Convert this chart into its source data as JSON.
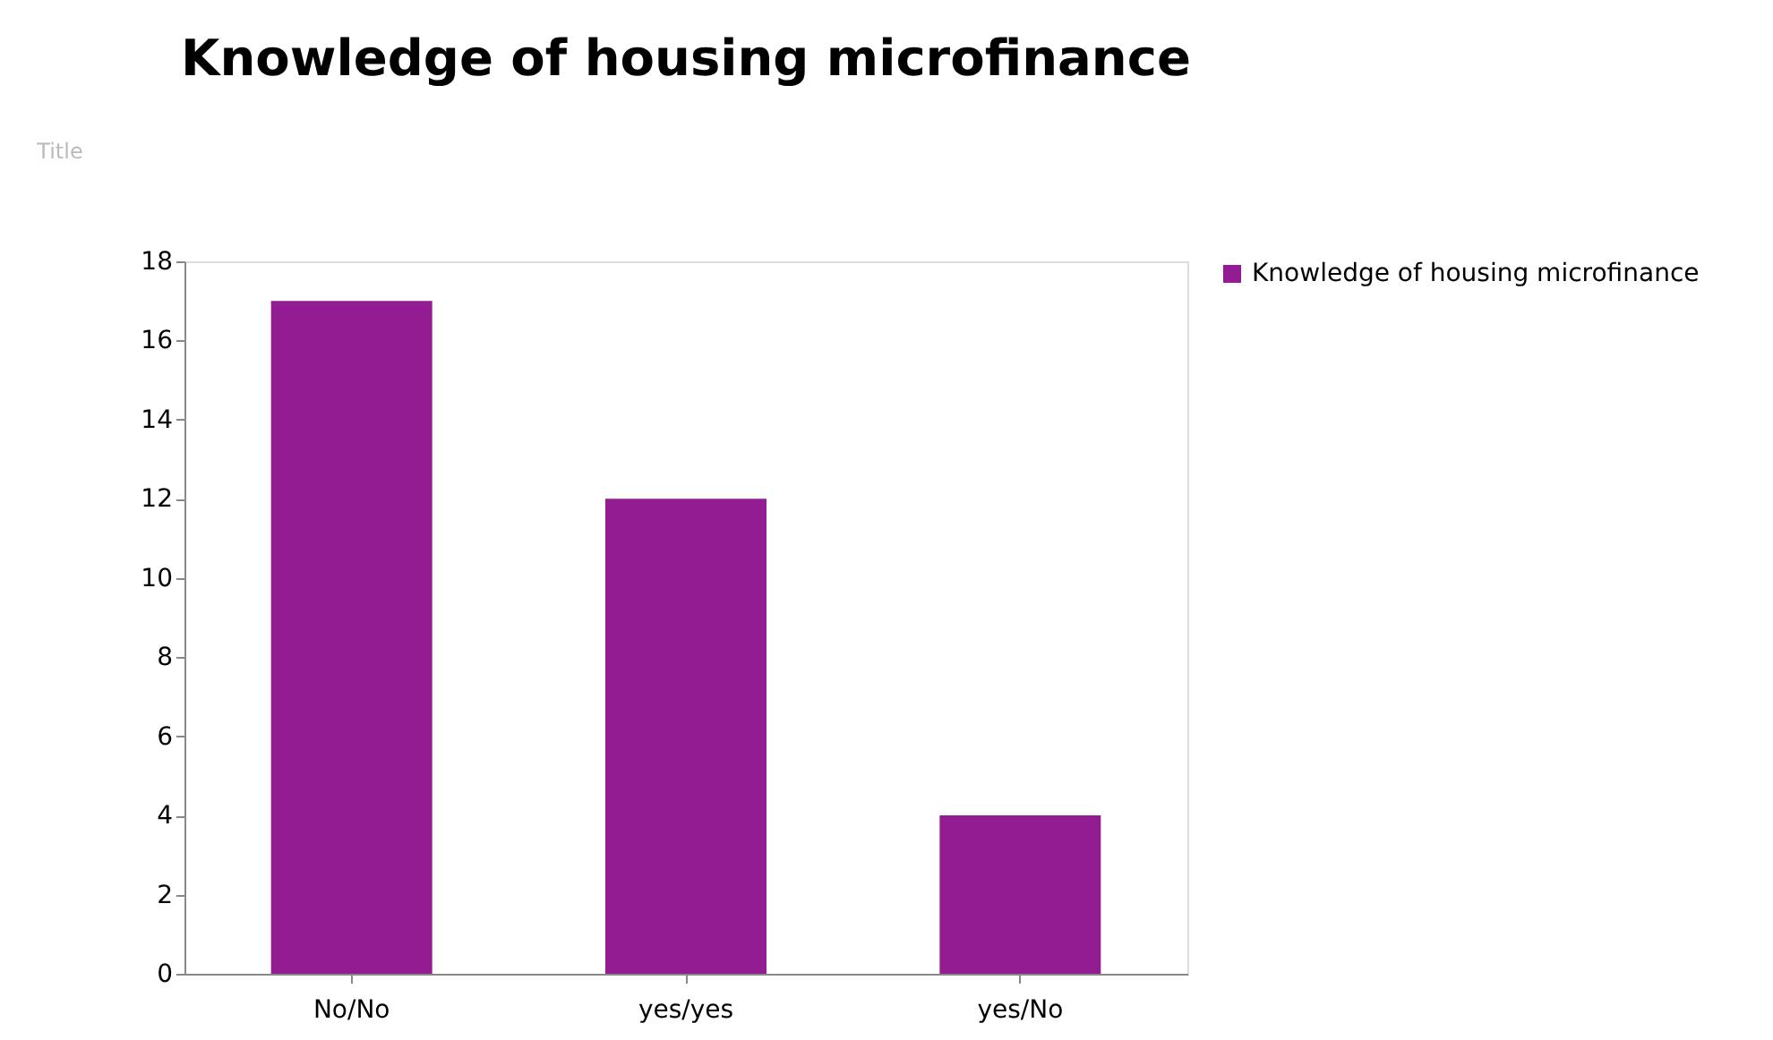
{
  "chart_data": {
    "type": "bar",
    "title": "Knowledge of housing microfinance",
    "ylabel": "Title",
    "categories": [
      "No/No",
      "yes/yes",
      "yes/No"
    ],
    "series": [
      {
        "name": "Knowledge of housing microfinance",
        "color": "#931c93",
        "values": [
          17,
          12,
          4
        ]
      }
    ],
    "ylim": [
      0,
      18
    ],
    "yticks": [
      0,
      2,
      4,
      6,
      8,
      10,
      12,
      14,
      16,
      18
    ],
    "grid": false,
    "legend": "right"
  }
}
